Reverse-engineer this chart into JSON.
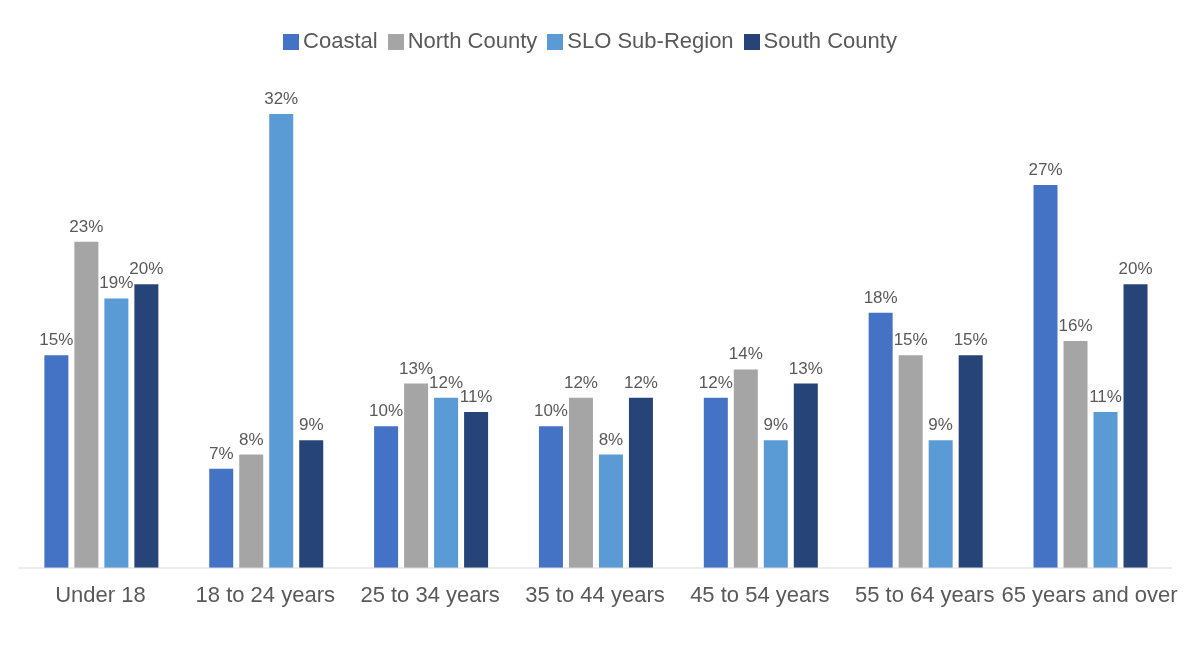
{
  "chart_data": {
    "type": "bar",
    "categories": [
      "Under 18",
      "18 to 24 years",
      "25 to 34 years",
      "35 to 44 years",
      "45 to 54 years",
      "55 to 64 years",
      "65 years and over"
    ],
    "series": [
      {
        "name": "Coastal",
        "color": "#4472c4",
        "values": [
          15,
          7,
          10,
          10,
          12,
          18,
          27
        ],
        "value_labels": [
          "15%",
          "7%",
          "10%",
          "10%",
          "12%",
          "18%",
          "27%"
        ]
      },
      {
        "name": "North County",
        "color": "#a5a5a5",
        "values": [
          23,
          8,
          13,
          12,
          14,
          15,
          16
        ],
        "value_labels": [
          "23%",
          "8%",
          "13%",
          "12%",
          "14%",
          "15%",
          "16%"
        ]
      },
      {
        "name": "SLO Sub-Region",
        "color": "#5b9bd5",
        "values": [
          19,
          32,
          12,
          8,
          9,
          9,
          11
        ],
        "value_labels": [
          "19%",
          "32%",
          "12%",
          "8%",
          "9%",
          "9%",
          "11%"
        ]
      },
      {
        "name": "South County",
        "color": "#264478",
        "values": [
          20,
          9,
          11,
          12,
          13,
          15,
          20
        ],
        "value_labels": [
          "20%",
          "9%",
          "11%",
          "12%",
          "13%",
          "15%",
          "20%"
        ]
      }
    ],
    "legend": "top",
    "grid": false
  }
}
